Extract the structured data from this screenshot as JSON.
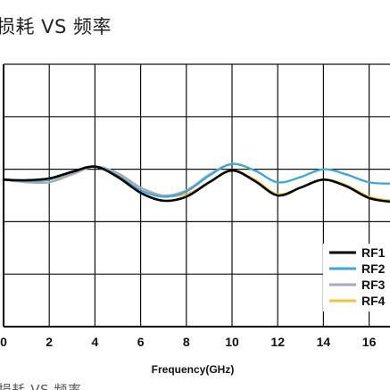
{
  "page": {
    "title": "损耗 VS 频率",
    "bottom_partial_title": "损耗 VS 频率"
  },
  "chart_data": {
    "type": "line",
    "title": "损耗 VS 频率",
    "xlabel": "Frequency(GHz)",
    "ylabel": "",
    "xlim": [
      0,
      17
    ],
    "ylim": [
      0,
      10
    ],
    "xticks": [
      0,
      2,
      4,
      6,
      8,
      10,
      12,
      14,
      16
    ],
    "grid": true,
    "legend_position": "bottom-right",
    "series": [
      {
        "name": "RF1",
        "color": "#000000",
        "x": [
          0,
          1,
          2,
          3,
          4,
          5,
          6,
          7,
          8,
          9,
          10,
          11,
          12,
          13,
          14,
          15,
          16,
          17
        ],
        "y": [
          5.6,
          5.58,
          5.65,
          5.9,
          6.1,
          5.7,
          5.1,
          4.8,
          4.95,
          5.5,
          5.95,
          5.55,
          5.0,
          5.3,
          5.6,
          5.35,
          4.9,
          4.75
        ]
      },
      {
        "name": "RF2",
        "color": "#3aa7d9",
        "x": [
          0,
          1,
          2,
          3,
          4,
          5,
          6,
          7,
          8,
          9,
          10,
          11,
          12,
          13,
          14,
          15,
          16,
          17
        ],
        "y": [
          5.62,
          5.55,
          5.6,
          5.88,
          6.1,
          5.75,
          5.2,
          4.95,
          5.15,
          5.75,
          6.2,
          5.95,
          5.5,
          5.7,
          6.0,
          5.8,
          5.5,
          5.45
        ]
      },
      {
        "name": "RF3",
        "color": "#a8a8b8",
        "x": [
          0,
          1,
          2,
          3,
          4,
          5,
          6,
          7,
          8,
          9,
          10,
          11,
          12,
          13,
          14,
          15,
          16,
          17
        ],
        "y": [
          5.6,
          5.5,
          5.5,
          5.8,
          6.1,
          5.85,
          5.3,
          5.0,
          5.2,
          5.8,
          6.2,
          5.95,
          5.5,
          5.7,
          6.0,
          5.8,
          5.5,
          5.45
        ]
      },
      {
        "name": "RF4",
        "color": "#f0c040",
        "x": [
          0,
          1,
          2,
          3,
          4,
          5,
          6,
          7,
          8,
          9,
          10,
          11,
          12,
          13,
          14,
          15,
          16,
          17
        ],
        "y": [
          5.6,
          5.55,
          5.5,
          5.85,
          6.1,
          5.8,
          5.3,
          5.0,
          5.05,
          5.5,
          5.95,
          5.6,
          5.05,
          5.3,
          5.6,
          5.4,
          4.95,
          4.8
        ]
      }
    ]
  }
}
